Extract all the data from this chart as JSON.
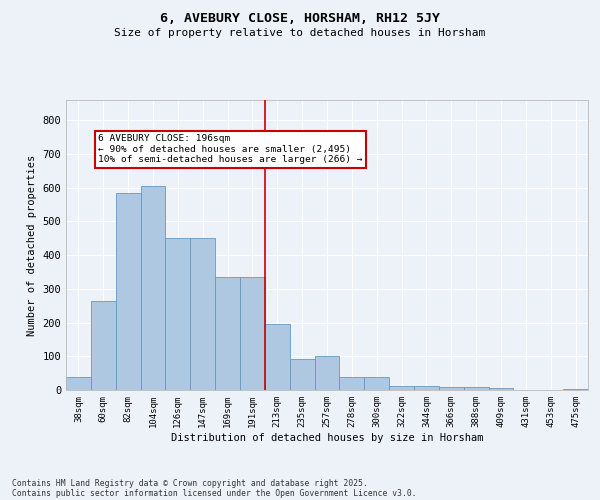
{
  "title": "6, AVEBURY CLOSE, HORSHAM, RH12 5JY",
  "subtitle": "Size of property relative to detached houses in Horsham",
  "xlabel": "Distribution of detached houses by size in Horsham",
  "ylabel": "Number of detached properties",
  "footnote1": "Contains HM Land Registry data © Crown copyright and database right 2025.",
  "footnote2": "Contains public sector information licensed under the Open Government Licence v3.0.",
  "categories": [
    "38sqm",
    "60sqm",
    "82sqm",
    "104sqm",
    "126sqm",
    "147sqm",
    "169sqm",
    "191sqm",
    "213sqm",
    "235sqm",
    "257sqm",
    "278sqm",
    "300sqm",
    "322sqm",
    "344sqm",
    "366sqm",
    "388sqm",
    "409sqm",
    "431sqm",
    "453sqm",
    "475sqm"
  ],
  "values": [
    40,
    265,
    585,
    605,
    450,
    450,
    335,
    335,
    195,
    93,
    100,
    40,
    40,
    13,
    13,
    10,
    10,
    5,
    0,
    0,
    2
  ],
  "bar_color": "#adc8e0",
  "bar_edge_color": "#6899c0",
  "bg_color": "#edf2f8",
  "grid_color": "#ffffff",
  "annotation_text": "6 AVEBURY CLOSE: 196sqm\n← 90% of detached houses are smaller (2,495)\n10% of semi-detached houses are larger (266) →",
  "vline_x": 7.5,
  "vline_color": "#cc0000",
  "annotation_box_color": "#cc0000",
  "ylim": [
    0,
    860
  ],
  "yticks": [
    0,
    100,
    200,
    300,
    400,
    500,
    600,
    700,
    800
  ]
}
